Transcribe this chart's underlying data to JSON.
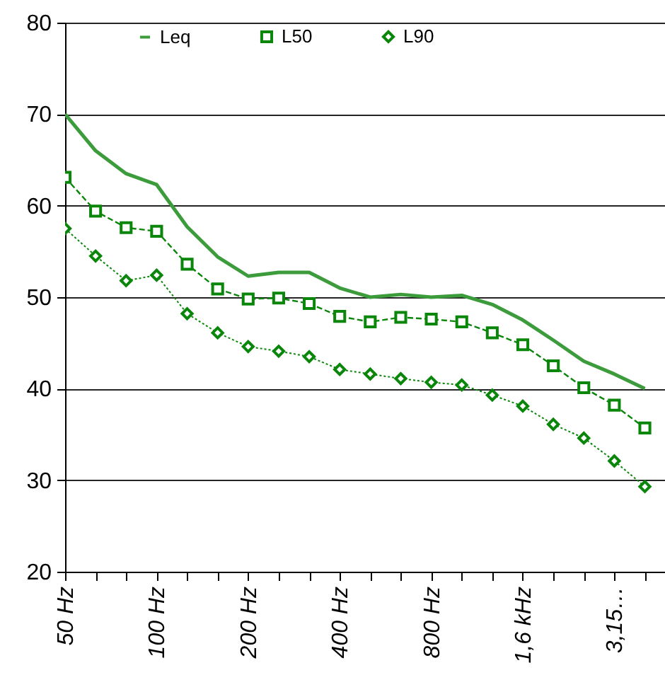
{
  "chart_data": {
    "type": "line",
    "categories": [
      "50 Hz",
      null,
      null,
      "100 Hz",
      null,
      null,
      "200 Hz",
      null,
      null,
      "400 Hz",
      null,
      null,
      "800 Hz",
      null,
      null,
      "1,6 kHz",
      null,
      null,
      "3,15…",
      null
    ],
    "series": [
      {
        "name": "Leq",
        "color": "#3c9c3c",
        "marker": "none",
        "line_style": "solid",
        "values": [
          70.0,
          66.0,
          63.5,
          62.3,
          57.7,
          54.4,
          52.3,
          52.7,
          52.7,
          51.0,
          50.0,
          50.3,
          50.0,
          50.2,
          49.2,
          47.5,
          45.3,
          43.0,
          41.6,
          40.0
        ]
      },
      {
        "name": "L50",
        "color": "#0a860a",
        "marker": "square",
        "line_style": "dashed",
        "values": [
          63.1,
          59.4,
          57.6,
          57.2,
          53.6,
          50.9,
          49.8,
          49.9,
          49.3,
          47.9,
          47.3,
          47.8,
          47.6,
          47.3,
          46.1,
          44.8,
          42.5,
          40.1,
          38.2,
          35.7
        ]
      },
      {
        "name": "L90",
        "color": "#0a860a",
        "marker": "diamond",
        "line_style": "dotted",
        "values": [
          57.5,
          54.5,
          51.8,
          52.4,
          48.2,
          46.1,
          44.6,
          44.1,
          43.5,
          42.1,
          41.6,
          41.1,
          40.7,
          40.4,
          39.3,
          38.1,
          36.1,
          34.6,
          32.1,
          29.3
        ]
      }
    ],
    "ylim": [
      20,
      80
    ],
    "yticks": [
      20,
      30,
      40,
      50,
      60,
      70,
      80
    ],
    "grid": "y",
    "legend": "top"
  }
}
